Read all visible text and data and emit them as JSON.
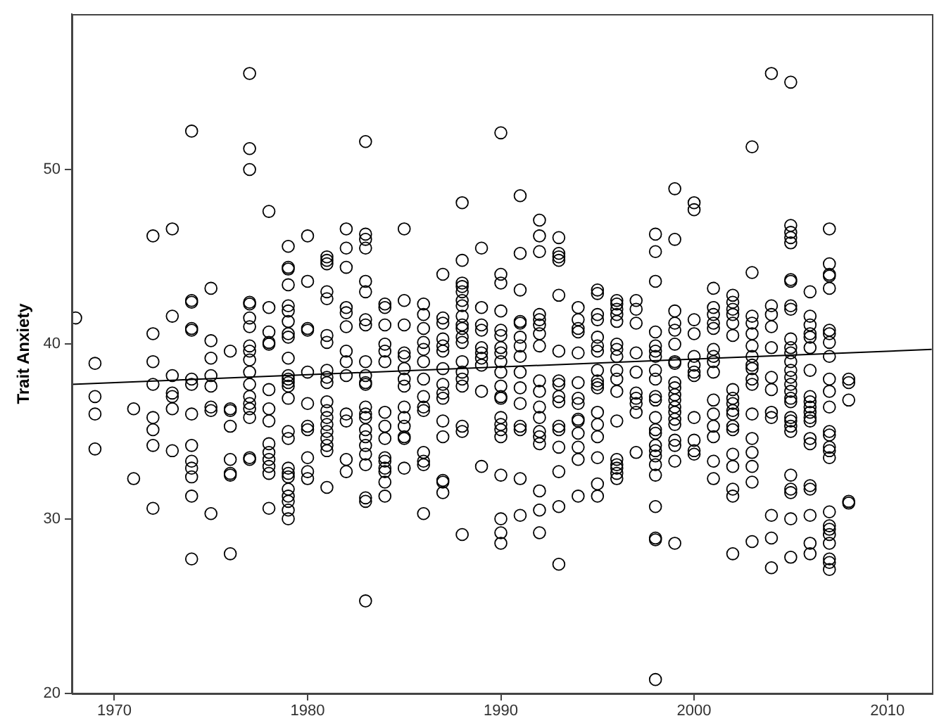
{
  "chart_data": {
    "type": "scatter",
    "ylabel": "Trait Anxiety",
    "xlim": [
      1967.8,
      2012.3
    ],
    "ylim": [
      20,
      58.9
    ],
    "xticks": [
      1970,
      1980,
      1990,
      2000,
      2010
    ],
    "yticks": [
      20,
      30,
      40,
      50
    ],
    "series": [
      {
        "marker": "circle",
        "color": "#000000",
        "x": [
          1968,
          1969,
          1969,
          1969,
          1969,
          1971,
          1971,
          1972,
          1972,
          1972,
          1972,
          1972,
          1972,
          1972,
          1972,
          1973,
          1973,
          1973,
          1973,
          1973,
          1973,
          1973,
          1974,
          1974,
          1974,
          1974,
          1974,
          1974,
          1974,
          1974,
          1974,
          1974,
          1974,
          1974,
          1974,
          1974,
          1975,
          1975,
          1975,
          1975,
          1975,
          1975,
          1975,
          1975,
          1976,
          1976,
          1976,
          1976,
          1976,
          1976,
          1976,
          1976,
          1977,
          1977,
          1977,
          1977,
          1977,
          1977,
          1977,
          1977,
          1977,
          1977,
          1977,
          1977,
          1977,
          1977,
          1977,
          1977,
          1977,
          1977,
          1978,
          1978,
          1978,
          1978,
          1978,
          1978,
          1978,
          1978,
          1978,
          1978,
          1978,
          1978,
          1978,
          1978,
          1979,
          1979,
          1979,
          1979,
          1979,
          1979,
          1979,
          1979,
          1979,
          1979,
          1979,
          1979,
          1979,
          1979,
          1979,
          1979,
          1979,
          1979,
          1979,
          1979,
          1979,
          1979,
          1979,
          1979,
          1979,
          1980,
          1980,
          1980,
          1980,
          1980,
          1980,
          1980,
          1980,
          1980,
          1980,
          1980,
          1981,
          1981,
          1981,
          1981,
          1981,
          1981,
          1981,
          1981,
          1981,
          1981,
          1981,
          1981,
          1981,
          1981,
          1981,
          1981,
          1981,
          1981,
          1981,
          1982,
          1982,
          1982,
          1982,
          1982,
          1982,
          1982,
          1982,
          1982,
          1982,
          1982,
          1982,
          1982,
          1983,
          1983,
          1983,
          1983,
          1983,
          1983,
          1983,
          1983,
          1983,
          1983,
          1983,
          1983,
          1983,
          1983,
          1983,
          1983,
          1983,
          1983,
          1983,
          1983,
          1983,
          1983,
          1983,
          1984,
          1984,
          1984,
          1984,
          1984,
          1984,
          1984,
          1984,
          1984,
          1984,
          1984,
          1984,
          1984,
          1984,
          1984,
          1985,
          1985,
          1985,
          1985,
          1985,
          1985,
          1985,
          1985,
          1985,
          1985,
          1985,
          1985,
          1985,
          1985,
          1986,
          1986,
          1986,
          1986,
          1986,
          1986,
          1986,
          1986,
          1986,
          1986,
          1986,
          1986,
          1986,
          1986,
          1987,
          1987,
          1987,
          1987,
          1987,
          1987,
          1987,
          1987,
          1987,
          1987,
          1987,
          1987,
          1987,
          1987,
          1987,
          1988,
          1988,
          1988,
          1988,
          1988,
          1988,
          1988,
          1988,
          1988,
          1988,
          1988,
          1988,
          1988,
          1988,
          1988,
          1988,
          1988,
          1988,
          1988,
          1989,
          1989,
          1989,
          1989,
          1989,
          1989,
          1989,
          1989,
          1989,
          1989,
          1990,
          1990,
          1990,
          1990,
          1990,
          1990,
          1990,
          1990,
          1990,
          1990,
          1990,
          1990,
          1990,
          1990,
          1990,
          1990,
          1990,
          1990,
          1990,
          1990,
          1990,
          1991,
          1991,
          1991,
          1991,
          1991,
          1991,
          1991,
          1991,
          1991,
          1991,
          1991,
          1991,
          1991,
          1991,
          1991,
          1992,
          1992,
          1992,
          1992,
          1992,
          1992,
          1992,
          1992,
          1992,
          1992,
          1992,
          1992,
          1992,
          1992,
          1992,
          1992,
          1992,
          1992,
          1993,
          1993,
          1993,
          1993,
          1993,
          1993,
          1993,
          1993,
          1993,
          1993,
          1993,
          1993,
          1993,
          1993,
          1993,
          1993,
          1994,
          1994,
          1994,
          1994,
          1994,
          1994,
          1994,
          1994,
          1994,
          1994,
          1994,
          1994,
          1994,
          1994,
          1995,
          1995,
          1995,
          1995,
          1995,
          1995,
          1995,
          1995,
          1995,
          1995,
          1995,
          1995,
          1995,
          1995,
          1995,
          1995,
          1995,
          1996,
          1996,
          1996,
          1996,
          1996,
          1996,
          1996,
          1996,
          1996,
          1996,
          1996,
          1996,
          1996,
          1996,
          1996,
          1996,
          1996,
          1997,
          1997,
          1997,
          1997,
          1997,
          1997,
          1997,
          1997,
          1997,
          1997,
          1998,
          1998,
          1998,
          1998,
          1998,
          1998,
          1998,
          1998,
          1998,
          1998,
          1998,
          1998,
          1998,
          1998,
          1998,
          1998,
          1998,
          1998,
          1998,
          1998,
          1998,
          1998,
          1998,
          1999,
          1999,
          1999,
          1999,
          1999,
          1999,
          1999,
          1999,
          1999,
          1999,
          1999,
          1999,
          1999,
          1999,
          1999,
          1999,
          1999,
          1999,
          1999,
          1999,
          2000,
          2000,
          2000,
          2000,
          2000,
          2000,
          2000,
          2000,
          2000,
          2000,
          2000,
          2000,
          2001,
          2001,
          2001,
          2001,
          2001,
          2001,
          2001,
          2001,
          2001,
          2001,
          2001,
          2001,
          2001,
          2001,
          2001,
          2002,
          2002,
          2002,
          2002,
          2002,
          2002,
          2002,
          2002,
          2002,
          2002,
          2002,
          2002,
          2002,
          2002,
          2002,
          2002,
          2002,
          2002,
          2003,
          2003,
          2003,
          2003,
          2003,
          2003,
          2003,
          2003,
          2003,
          2003,
          2003,
          2003,
          2003,
          2003,
          2003,
          2003,
          2003,
          2004,
          2004,
          2004,
          2004,
          2004,
          2004,
          2004,
          2004,
          2004,
          2004,
          2004,
          2004,
          2005,
          2005,
          2005,
          2005,
          2005,
          2005,
          2005,
          2005,
          2005,
          2005,
          2005,
          2005,
          2005,
          2005,
          2005,
          2005,
          2005,
          2005,
          2005,
          2005,
          2005,
          2005,
          2005,
          2005,
          2005,
          2005,
          2005,
          2005,
          2006,
          2006,
          2006,
          2006,
          2006,
          2006,
          2006,
          2006,
          2006,
          2006,
          2006,
          2006,
          2006,
          2006,
          2006,
          2006,
          2006,
          2006,
          2006,
          2006,
          2007,
          2007,
          2007,
          2007,
          2007,
          2007,
          2007,
          2007,
          2007,
          2007,
          2007,
          2007,
          2007,
          2007,
          2007,
          2007,
          2007,
          2007,
          2007,
          2007,
          2007,
          2007,
          2007,
          2007,
          2007,
          2008,
          2008,
          2008,
          2008,
          2008
        ],
        "values": [
          41.5,
          38.9,
          37.0,
          36.0,
          34.0,
          36.3,
          32.3,
          46.2,
          40.6,
          39.0,
          37.7,
          35.8,
          35.1,
          34.2,
          30.6,
          46.6,
          41.6,
          38.2,
          37.2,
          37.0,
          36.3,
          33.9,
          52.2,
          42.5,
          42.4,
          40.9,
          40.8,
          38.0,
          37.7,
          36.0,
          34.2,
          33.3,
          32.9,
          32.4,
          31.3,
          27.7,
          43.2,
          40.2,
          39.2,
          38.2,
          37.6,
          36.4,
          36.2,
          30.3,
          39.6,
          36.3,
          36.2,
          35.3,
          33.4,
          32.6,
          32.5,
          28.0,
          55.5,
          51.2,
          50.0,
          42.4,
          42.3,
          41.5,
          41.0,
          39.9,
          39.6,
          39.1,
          38.4,
          37.7,
          37.0,
          36.6,
          36.3,
          35.8,
          33.5,
          33.4,
          47.6,
          42.1,
          40.7,
          40.1,
          40.0,
          37.4,
          36.3,
          35.6,
          34.3,
          33.8,
          33.4,
          33.0,
          32.6,
          30.6,
          45.6,
          44.4,
          44.3,
          43.4,
          42.2,
          41.9,
          41.3,
          40.6,
          40.4,
          39.2,
          38.2,
          38.0,
          37.8,
          37.6,
          36.9,
          35.0,
          34.6,
          32.9,
          32.6,
          32.4,
          31.7,
          31.3,
          31.0,
          30.5,
          30.0,
          46.2,
          43.6,
          40.9,
          40.8,
          38.4,
          36.6,
          35.3,
          35.1,
          33.5,
          32.7,
          32.3,
          45.0,
          44.8,
          44.6,
          43.0,
          42.6,
          40.5,
          40.1,
          38.5,
          38.1,
          37.8,
          36.7,
          36.2,
          35.8,
          35.4,
          35.0,
          34.6,
          34.2,
          33.9,
          31.8,
          46.6,
          45.5,
          44.4,
          42.1,
          41.8,
          41.0,
          39.6,
          39.0,
          38.2,
          36.0,
          35.6,
          33.4,
          32.7,
          51.6,
          46.3,
          46.0,
          45.5,
          43.6,
          43.0,
          41.4,
          41.1,
          39.0,
          38.2,
          37.8,
          37.7,
          36.4,
          36.0,
          35.8,
          35.1,
          34.7,
          34.2,
          33.7,
          33.1,
          31.2,
          31.0,
          25.3,
          42.3,
          42.1,
          41.1,
          40.0,
          39.6,
          39.0,
          36.1,
          35.3,
          34.6,
          33.5,
          33.3,
          32.9,
          32.7,
          32.1,
          31.3,
          46.6,
          42.5,
          41.1,
          39.5,
          39.3,
          38.6,
          38.0,
          37.6,
          36.4,
          35.8,
          35.3,
          34.7,
          34.6,
          32.9,
          42.3,
          41.7,
          40.9,
          40.1,
          39.7,
          39.0,
          38.0,
          37.0,
          36.4,
          36.2,
          33.8,
          33.3,
          33.1,
          30.3,
          44.0,
          41.5,
          41.2,
          40.3,
          39.9,
          39.6,
          38.6,
          37.7,
          37.2,
          36.9,
          35.6,
          34.7,
          32.2,
          32.1,
          31.5,
          48.1,
          44.8,
          43.5,
          43.3,
          43.0,
          42.5,
          42.2,
          41.6,
          41.1,
          40.9,
          40.4,
          40.1,
          39.0,
          38.4,
          38.0,
          37.6,
          35.3,
          35.0,
          29.1,
          45.5,
          42.1,
          41.1,
          40.8,
          39.8,
          39.5,
          39.2,
          38.8,
          37.3,
          33.0,
          52.1,
          44.0,
          43.5,
          41.9,
          40.8,
          40.5,
          39.8,
          39.5,
          39.0,
          38.4,
          37.6,
          37.0,
          36.9,
          35.8,
          35.4,
          35.1,
          34.7,
          32.5,
          30.0,
          29.2,
          28.6,
          48.5,
          45.2,
          43.1,
          41.3,
          41.2,
          40.4,
          39.9,
          39.3,
          38.4,
          37.5,
          36.6,
          35.3,
          35.1,
          32.3,
          30.2,
          47.1,
          46.2,
          45.3,
          41.7,
          41.4,
          41.1,
          40.6,
          39.9,
          37.9,
          37.3,
          36.4,
          35.8,
          35.0,
          34.7,
          34.3,
          31.6,
          30.5,
          29.2,
          46.1,
          45.2,
          45.0,
          44.8,
          42.8,
          39.6,
          37.9,
          37.7,
          37.0,
          36.7,
          35.3,
          35.1,
          34.1,
          32.7,
          30.7,
          27.4,
          42.1,
          41.4,
          40.9,
          40.7,
          39.5,
          37.8,
          36.9,
          36.6,
          35.7,
          35.6,
          34.9,
          34.1,
          33.4,
          31.3,
          43.1,
          42.9,
          41.7,
          41.4,
          40.4,
          39.9,
          39.6,
          38.5,
          37.9,
          37.7,
          37.5,
          36.1,
          35.4,
          34.7,
          33.5,
          32.0,
          31.3,
          42.5,
          42.3,
          42.0,
          41.7,
          41.3,
          40.0,
          39.7,
          39.3,
          38.5,
          38.0,
          37.3,
          35.6,
          33.4,
          33.1,
          32.9,
          32.6,
          32.3,
          42.5,
          42.0,
          41.2,
          39.5,
          38.4,
          37.2,
          36.9,
          36.6,
          36.1,
          33.8,
          46.3,
          45.3,
          43.6,
          40.7,
          39.9,
          39.6,
          39.3,
          38.5,
          38.0,
          37.0,
          36.8,
          35.8,
          35.1,
          34.9,
          34.2,
          33.9,
          33.6,
          33.1,
          32.5,
          30.7,
          28.9,
          28.8,
          20.8,
          48.9,
          46.0,
          41.9,
          41.2,
          40.8,
          40.0,
          39.0,
          38.9,
          37.8,
          37.5,
          37.1,
          36.8,
          36.4,
          36.1,
          35.7,
          35.4,
          34.5,
          34.2,
          33.3,
          28.6,
          48.1,
          47.7,
          41.4,
          40.6,
          39.3,
          38.8,
          38.4,
          38.2,
          35.8,
          34.5,
          33.9,
          33.7,
          43.2,
          42.1,
          41.7,
          41.2,
          40.9,
          39.7,
          39.3,
          39.0,
          38.4,
          36.8,
          36.0,
          35.3,
          34.7,
          33.3,
          32.3,
          42.8,
          42.4,
          42.0,
          41.7,
          41.2,
          40.5,
          37.4,
          36.9,
          36.6,
          36.2,
          36.0,
          35.3,
          35.1,
          33.7,
          33.0,
          31.7,
          31.3,
          28.0,
          51.3,
          44.1,
          41.6,
          41.2,
          40.6,
          39.9,
          39.3,
          38.8,
          38.6,
          38.0,
          37.7,
          36.0,
          34.6,
          33.8,
          33.0,
          32.1,
          28.7,
          55.5,
          42.2,
          41.7,
          41.0,
          39.8,
          38.1,
          37.4,
          36.1,
          35.8,
          30.2,
          28.9,
          27.2,
          55.0,
          46.8,
          46.4,
          46.1,
          45.8,
          43.7,
          43.6,
          42.2,
          42.0,
          40.3,
          39.8,
          39.5,
          39.0,
          38.5,
          38.1,
          37.7,
          37.3,
          36.9,
          36.7,
          35.8,
          35.6,
          35.3,
          35.0,
          32.5,
          31.7,
          31.5,
          30.0,
          27.8,
          43.0,
          41.6,
          41.1,
          40.6,
          40.4,
          39.8,
          38.5,
          37.0,
          36.7,
          36.4,
          36.1,
          35.8,
          35.6,
          34.6,
          34.3,
          31.9,
          31.7,
          30.2,
          28.6,
          28.0,
          46.6,
          44.6,
          44.0,
          43.9,
          43.2,
          40.8,
          40.6,
          40.1,
          39.3,
          38.0,
          37.3,
          36.4,
          35.0,
          34.8,
          34.1,
          33.9,
          33.5,
          30.4,
          29.6,
          29.4,
          29.1,
          28.6,
          27.7,
          27.5,
          27.1,
          38.0,
          37.8,
          36.8,
          31.0,
          30.9
        ]
      },
      {
        "type": "line",
        "marker": "none",
        "color": "#000000",
        "x": [
          1967.8,
          2012.3
        ],
        "values": [
          37.7,
          39.7
        ]
      }
    ]
  }
}
